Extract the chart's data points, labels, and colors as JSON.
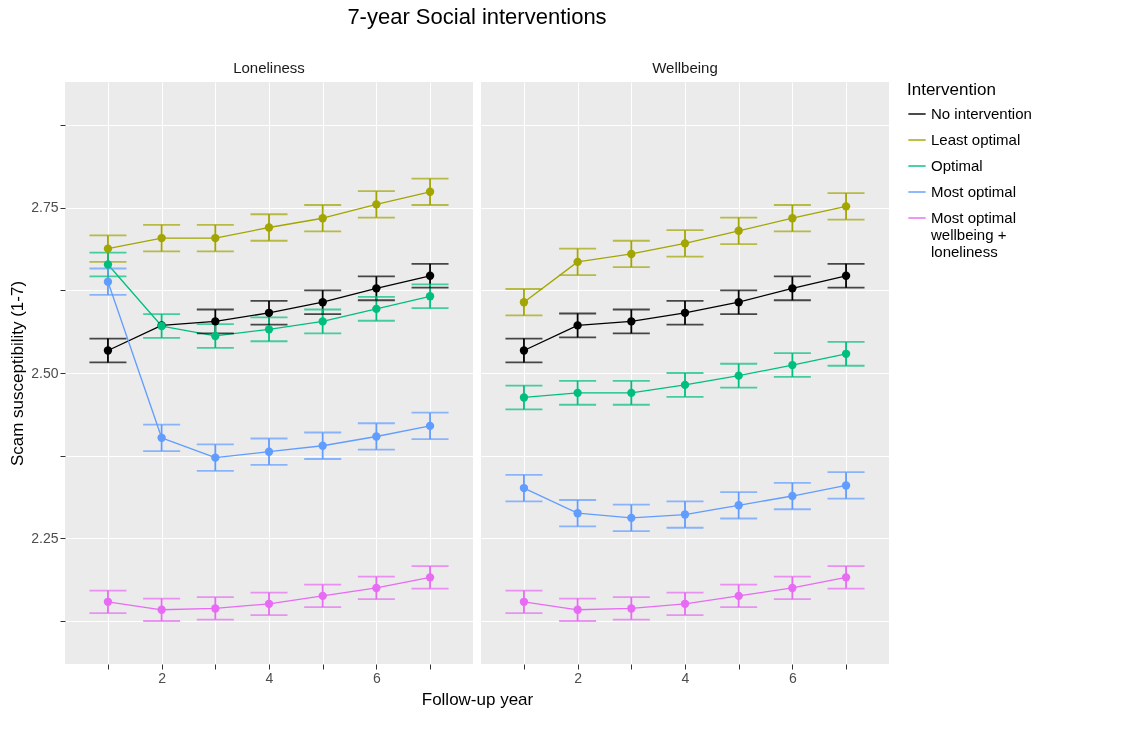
{
  "chart_data": [
    {
      "type": "line",
      "title": "7-year Social interventions",
      "subtitle": "Loneliness",
      "legend_title": "Intervention",
      "legend": "right",
      "xlabel": "Follow-up year",
      "ylabel": "Scam susceptibility (1-7)",
      "xlim": [
        0.2,
        7.8
      ],
      "ylim": [
        2.06,
        2.94
      ],
      "xticks": [
        {
          "value": 1,
          "label": null
        },
        2,
        {
          "value": 3,
          "label": null
        },
        4,
        {
          "value": 5,
          "label": null
        },
        6,
        {
          "value": 7,
          "label": null
        }
      ],
      "yticks": [
        {
          "value": 2.125,
          "label": null
        },
        2.25,
        {
          "value": 2.375,
          "label": null
        },
        {
          "value": 2.5,
          "label": "2.50"
        },
        {
          "value": 2.625,
          "label": null
        },
        2.75,
        {
          "value": 2.875,
          "label": null
        }
      ],
      "grid": true,
      "marker": "circle",
      "x": [
        1,
        2,
        3,
        4,
        5,
        6,
        7
      ],
      "series": [
        {
          "name": "No intervention",
          "color": "#000000",
          "values": [
            2.534,
            2.572,
            2.578,
            2.591,
            2.607,
            2.628,
            2.647
          ],
          "errors": [
            0.018,
            null,
            0.018,
            0.018,
            0.018,
            0.018,
            0.018
          ]
        },
        {
          "name": "Least optimal",
          "color": "#a3a500",
          "values": [
            2.688,
            2.704,
            2.704,
            2.72,
            2.734,
            2.755,
            2.774
          ],
          "errors": [
            0.02,
            0.02,
            0.02,
            0.02,
            0.02,
            0.02,
            0.02
          ]
        },
        {
          "name": "Optimal",
          "color": "#00bf7d",
          "values": [
            2.664,
            2.571,
            2.556,
            2.566,
            2.578,
            2.597,
            2.616
          ],
          "errors": [
            0.018,
            0.018,
            0.018,
            0.018,
            0.018,
            0.018,
            0.018
          ]
        },
        {
          "name": "Most optimal",
          "color": "#619cff",
          "values": [
            2.638,
            2.402,
            2.372,
            2.381,
            2.39,
            2.404,
            2.42
          ],
          "errors": [
            0.02,
            0.02,
            0.02,
            0.02,
            0.02,
            0.02,
            0.02
          ]
        },
        {
          "name": "Most optimal\nwellbeing +\nloneliness",
          "color": "#e76bf3",
          "values": [
            2.154,
            2.142,
            2.144,
            2.151,
            2.163,
            2.175,
            2.191
          ],
          "errors": [
            0.017,
            0.017,
            0.017,
            0.017,
            0.017,
            0.017,
            0.017
          ]
        }
      ]
    },
    {
      "type": "line",
      "subtitle": "Wellbeing",
      "tick_labels": "x",
      "xlim": [
        0.2,
        7.8
      ],
      "ylim": [
        2.06,
        2.94
      ],
      "xticks": [
        {
          "value": 1,
          "label": null
        },
        2,
        {
          "value": 3,
          "label": null
        },
        4,
        {
          "value": 5,
          "label": null
        },
        6,
        {
          "value": 7,
          "label": null
        }
      ],
      "yticks": [
        2.125,
        2.25,
        2.375,
        2.5,
        2.625,
        2.75,
        2.875
      ],
      "grid": true,
      "marker": "circle",
      "x": [
        1,
        2,
        3,
        4,
        5,
        6,
        7
      ],
      "series": [
        {
          "name": "No intervention",
          "color": "#000000",
          "values": [
            2.534,
            2.572,
            2.578,
            2.591,
            2.607,
            2.628,
            2.647
          ],
          "errors": [
            0.018,
            0.018,
            0.018,
            0.018,
            0.018,
            0.018,
            0.018
          ]
        },
        {
          "name": "Least optimal",
          "color": "#a3a500",
          "values": [
            2.607,
            2.668,
            2.68,
            2.696,
            2.715,
            2.734,
            2.752
          ],
          "errors": [
            0.02,
            0.02,
            0.02,
            0.02,
            0.02,
            0.02,
            0.02
          ]
        },
        {
          "name": "Optimal",
          "color": "#00bf7d",
          "values": [
            2.463,
            2.47,
            2.47,
            2.482,
            2.496,
            2.512,
            2.529
          ],
          "errors": [
            0.018,
            0.018,
            0.018,
            0.018,
            0.018,
            0.018,
            0.018
          ]
        },
        {
          "name": "Most optimal",
          "color": "#619cff",
          "values": [
            2.326,
            2.288,
            2.281,
            2.286,
            2.3,
            2.314,
            2.33
          ],
          "errors": [
            0.02,
            0.02,
            0.02,
            0.02,
            0.02,
            0.02,
            0.02
          ]
        },
        {
          "name": "Most optimal\nwellbeing +\nloneliness",
          "color": "#e76bf3",
          "values": [
            2.154,
            2.142,
            2.144,
            2.151,
            2.163,
            2.175,
            2.191
          ],
          "errors": [
            0.017,
            0.017,
            0.017,
            0.017,
            0.017,
            0.017,
            0.017
          ]
        }
      ]
    }
  ]
}
